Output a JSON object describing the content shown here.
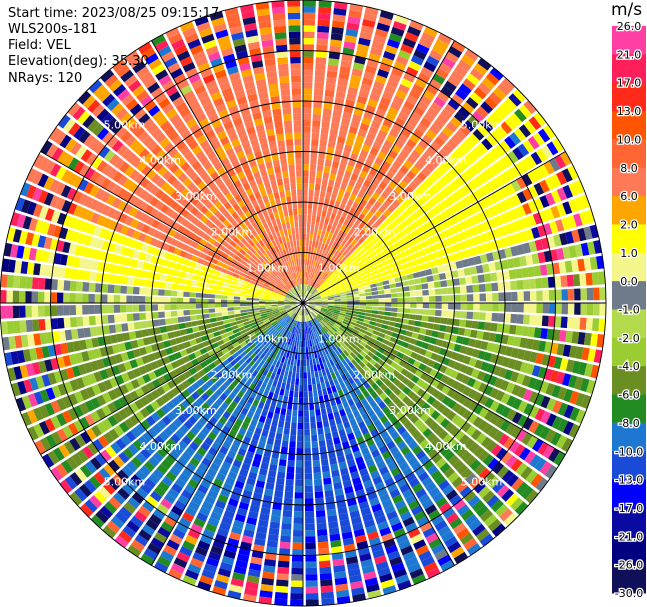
{
  "header": {
    "start_time": "Start time: 2023/08/25 09:15:17",
    "site": "WLS200s-181",
    "field": "Field: VEL",
    "elevation": "Elevation(deg): 35.30",
    "nrays": "NRays: 120"
  },
  "colorbar": {
    "unit": "m/s",
    "levels": [
      {
        "label": "26.0",
        "color": "#ff3fa4"
      },
      {
        "label": "21.0",
        "color": "#ff1f5b"
      },
      {
        "label": "17.0",
        "color": "#ff2a1a"
      },
      {
        "label": "13.0",
        "color": "#ff5500"
      },
      {
        "label": "10.0",
        "color": "#ff6633"
      },
      {
        "label": "8.0",
        "color": "#fe7a57"
      },
      {
        "label": "6.0",
        "color": "#ffa500"
      },
      {
        "label": "2.0",
        "color": "#ffff00"
      },
      {
        "label": "1.0",
        "color": "#f4f58a"
      },
      {
        "label": "0.0",
        "color": "#6f7a8a"
      },
      {
        "label": "-1.0",
        "color": "#b3d94d"
      },
      {
        "label": "-2.0",
        "color": "#9acd32"
      },
      {
        "label": "-4.0",
        "color": "#6b8e23"
      },
      {
        "label": "-6.0",
        "color": "#228b22"
      },
      {
        "label": "-8.0",
        "color": "#1e78d2"
      },
      {
        "label": "-10.0",
        "color": "#1a4bd8"
      },
      {
        "label": "-13.0",
        "color": "#0000ff"
      },
      {
        "label": "-17.0",
        "color": "#0a0aa0"
      },
      {
        "label": "-21.0",
        "color": "#000080"
      },
      {
        "label": "-26.0",
        "color": "#10105a"
      }
    ],
    "bottom_label": "-30.0"
  },
  "chart_data": {
    "type": "ppi",
    "title": "VEL",
    "field": "VEL",
    "units": "m/s",
    "nrays": 120,
    "elevation_deg": 35.3,
    "max_range_km": 6.0,
    "range_rings_km": [
      1.0,
      2.0,
      3.0,
      4.0,
      5.0
    ],
    "ring_labels": [
      "1.00km",
      "2.00km",
      "3.00km",
      "4.00km",
      "5.00km"
    ],
    "azimuth_lines_deg": [
      0,
      30,
      60,
      90,
      120,
      150,
      180,
      210,
      240,
      270,
      300,
      330
    ],
    "velocity_range": [
      -30.0,
      30.0
    ],
    "sectors": [
      {
        "az_from": 290,
        "az_to": 360,
        "velocity": 9.0
      },
      {
        "az_from": 0,
        "az_to": 45,
        "velocity": 9.0
      },
      {
        "az_from": 45,
        "az_to": 75,
        "velocity": 4.0
      },
      {
        "az_from": 75,
        "az_to": 95,
        "velocity": 0.0
      },
      {
        "az_from": 95,
        "az_to": 140,
        "velocity": -3.0
      },
      {
        "az_from": 140,
        "az_to": 160,
        "velocity": -7.0
      },
      {
        "az_from": 160,
        "az_to": 200,
        "velocity": -9.0
      },
      {
        "az_from": 200,
        "az_to": 235,
        "velocity": -7.0
      },
      {
        "az_from": 235,
        "az_to": 260,
        "velocity": -3.0
      },
      {
        "az_from": 260,
        "az_to": 275,
        "velocity": 0.0
      },
      {
        "az_from": 275,
        "az_to": 290,
        "velocity": 3.0
      }
    ]
  }
}
